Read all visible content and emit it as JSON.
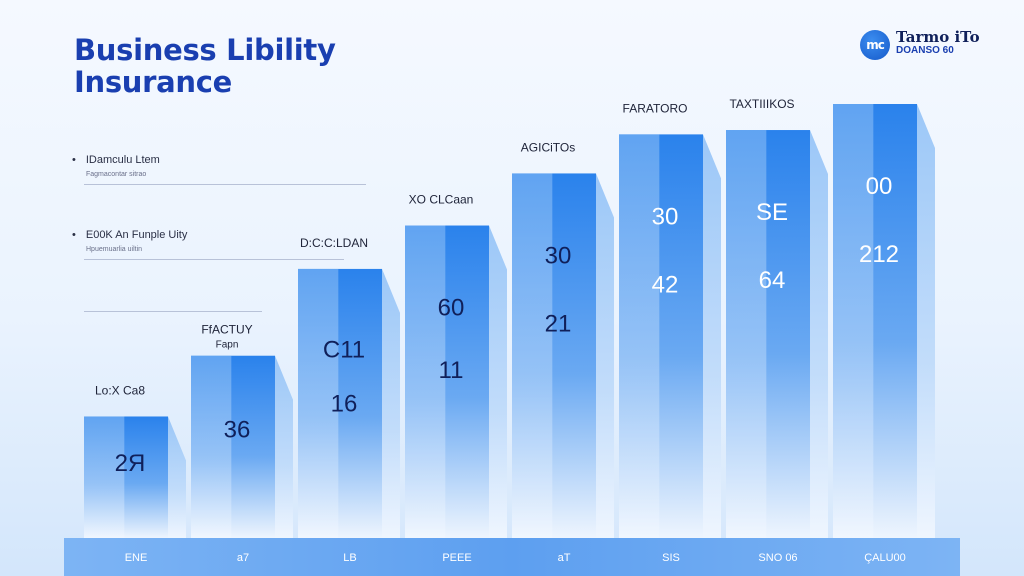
{
  "title_lines": [
    "Business Libility",
    "Insurance"
  ],
  "logo": {
    "mark": "mc",
    "name": "Tarmo iTo",
    "sub": "DOANSO 60"
  },
  "notes": [
    {
      "text": "IDamculu Ltem",
      "sub": "Fagmacontar sitrao"
    },
    {
      "text": "E00K An Funple Uity",
      "sub": "Hpuemuarlia uiltin"
    }
  ],
  "colors": {
    "title": "#1a3fb0",
    "bar_top": "#1f78e6",
    "bar_bottom": "#eef5fe",
    "axis_band": "#5d9ff0"
  },
  "chart_data": {
    "type": "bar",
    "title": "Business Libility Insurance",
    "categories": [
      "ENE",
      "a7",
      "LB",
      "PEEE",
      "aT",
      "SIS",
      "SNO 06",
      "ÇALU00"
    ],
    "top_labels": [
      "Lo:X Ca8",
      "FfACTUY",
      "D:C:C:LDAN",
      "XO CLCaan",
      "AGICiTOs",
      "FARATORO",
      "TAXTIIIKOS",
      ""
    ],
    "top_sublabels": [
      "",
      "Fapn",
      "",
      "",
      "",
      "",
      "",
      ""
    ],
    "values": [
      28,
      42,
      62,
      72,
      84,
      93,
      94,
      100
    ],
    "value_labels": [
      [
        "2Я"
      ],
      [
        "36"
      ],
      [
        "C11",
        "16"
      ],
      [
        "60",
        "11"
      ],
      [
        "30",
        "21"
      ],
      [
        "30",
        "42"
      ],
      [
        "SE",
        "64"
      ],
      [
        "00",
        "212"
      ]
    ],
    "ylim": [
      0,
      100
    ],
    "grid": false,
    "legend": "none"
  }
}
